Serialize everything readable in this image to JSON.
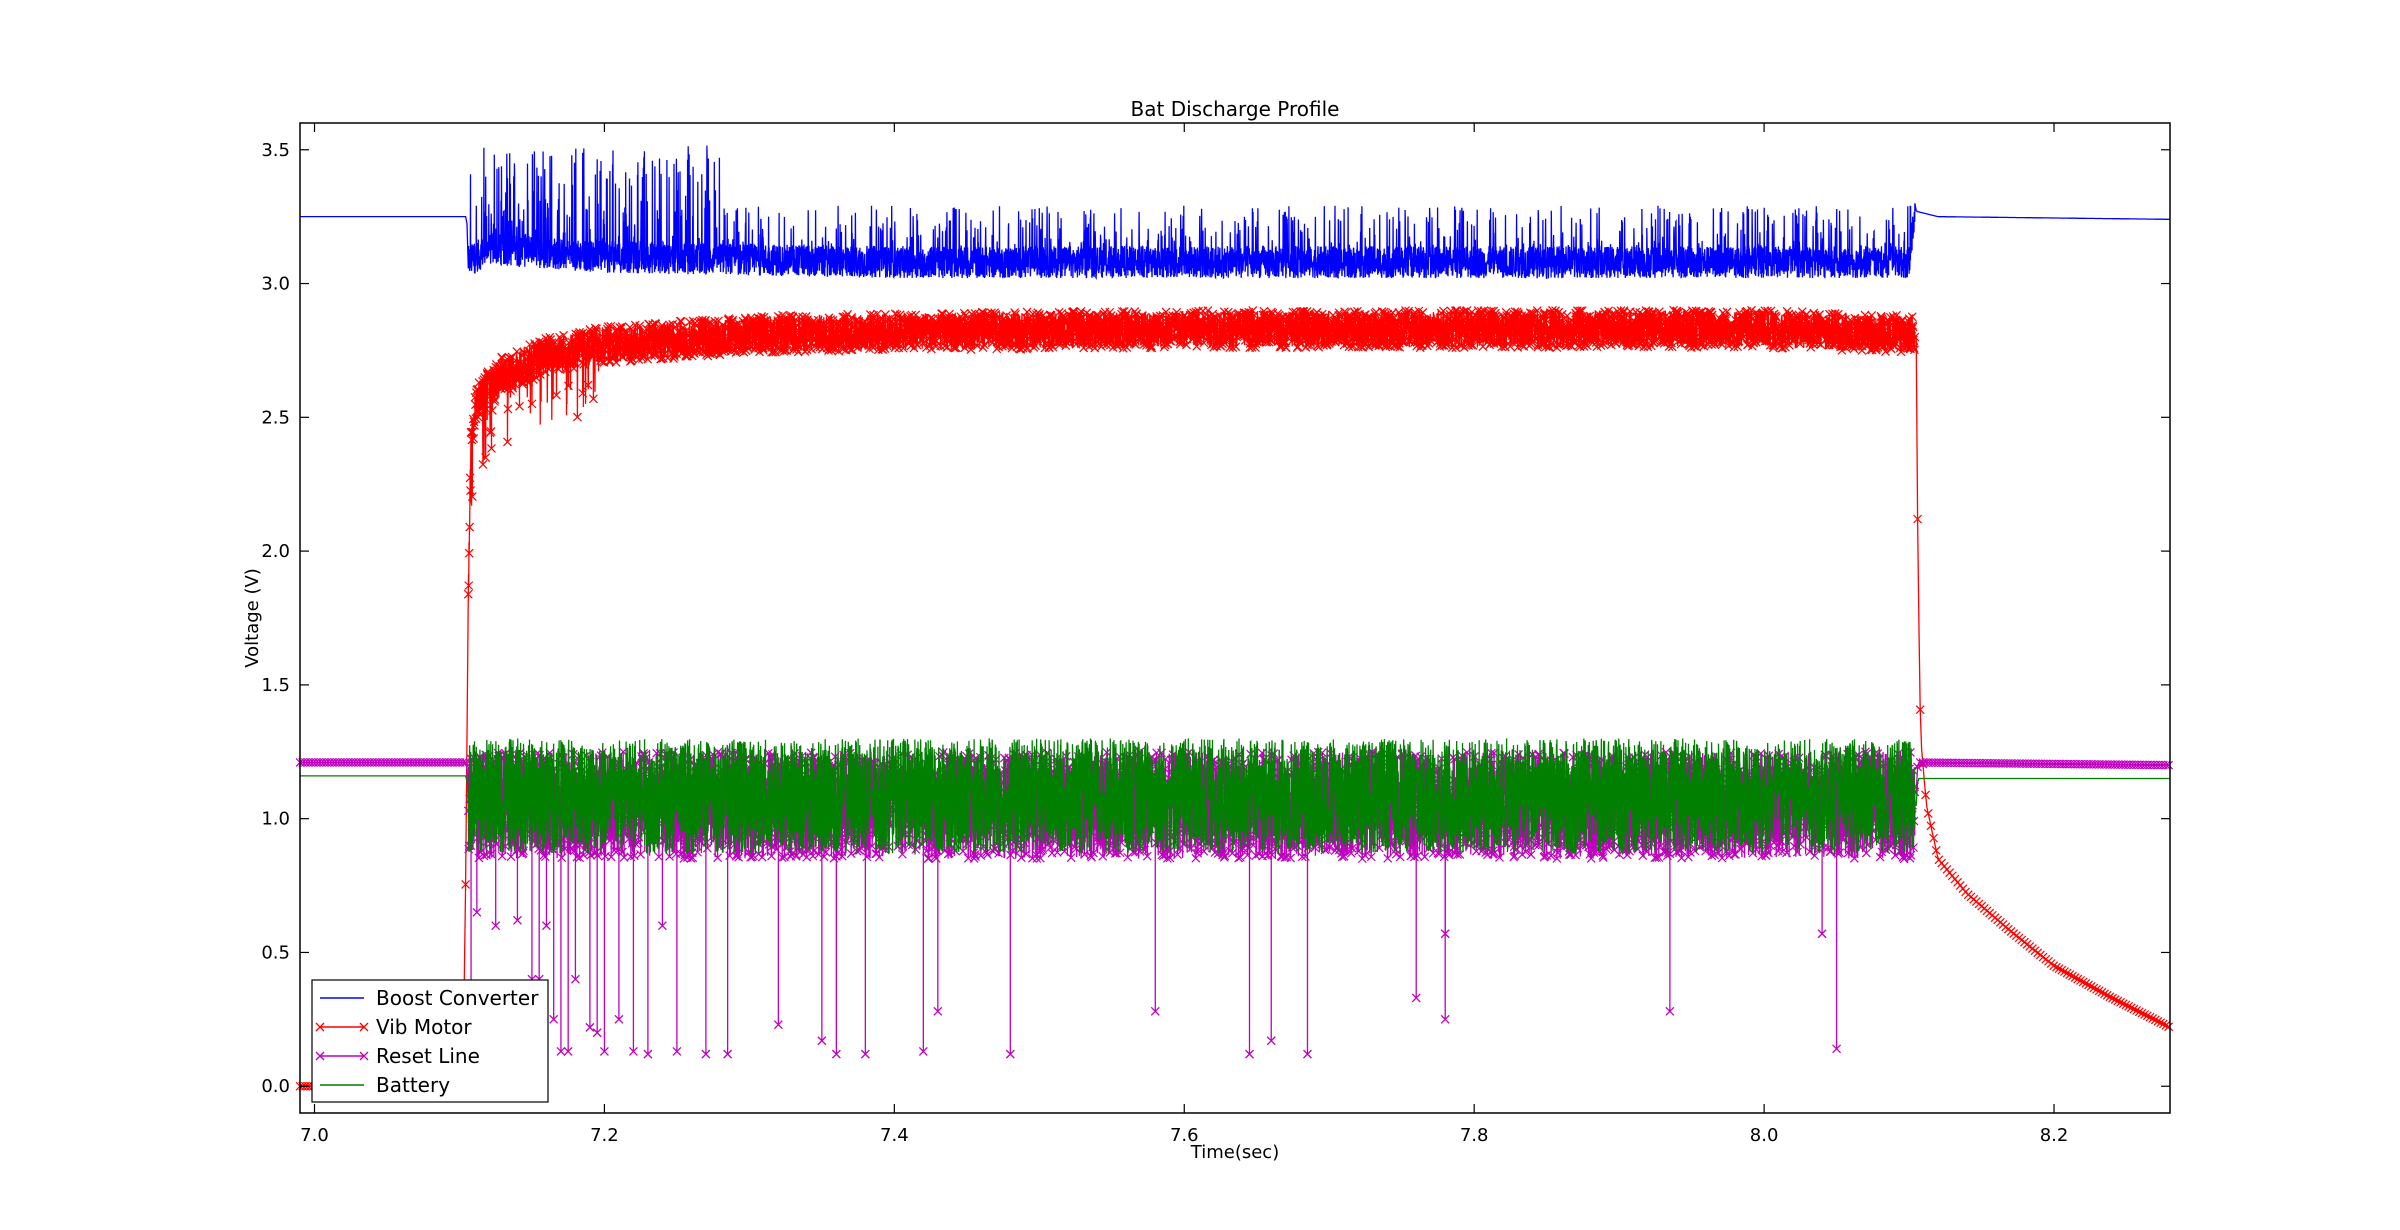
{
  "chart_data": {
    "type": "line",
    "title": "Bat Discharge Profile",
    "xlabel": "Time(sec)",
    "ylabel": "Voltage (V)",
    "xlim": [
      6.99,
      8.28
    ],
    "ylim": [
      -0.1,
      3.6
    ],
    "xticks": [
      7.0,
      7.2,
      7.4,
      7.6,
      7.8,
      8.0,
      8.2
    ],
    "xtick_labels": [
      "7.0",
      "7.2",
      "7.4",
      "7.6",
      "7.8",
      "8.0",
      "8.2"
    ],
    "yticks": [
      0.0,
      0.5,
      1.0,
      1.5,
      2.0,
      2.5,
      3.0,
      3.5
    ],
    "ytick_labels": [
      "0.0",
      "0.5",
      "1.0",
      "1.5",
      "2.0",
      "2.5",
      "3.0",
      "3.5"
    ],
    "grid": false,
    "legend_position": "bottom-left",
    "series": [
      {
        "name": "Boost Converter",
        "color": "#0000ff",
        "marker": "none",
        "x": [
          6.99,
          7.105,
          7.106,
          7.12,
          7.2,
          7.4,
          7.6,
          7.8,
          8.0,
          8.1,
          8.104,
          8.105,
          8.12,
          8.28
        ],
        "y": [
          3.25,
          3.25,
          3.1,
          3.15,
          3.12,
          3.1,
          3.1,
          3.1,
          3.1,
          3.1,
          3.3,
          3.27,
          3.25,
          3.24
        ],
        "spike_range": [
          3.0,
          3.52
        ]
      },
      {
        "name": "Vib Motor",
        "color": "#ff0000",
        "marker": "x",
        "x": [
          6.99,
          7.102,
          7.104,
          7.106,
          7.108,
          7.112,
          7.13,
          7.16,
          7.2,
          7.3,
          7.4,
          7.6,
          7.8,
          8.0,
          8.105,
          8.106,
          8.108,
          8.112,
          8.12,
          8.14,
          8.17,
          8.2,
          8.24,
          8.28
        ],
        "y": [
          0.0,
          0.0,
          0.6,
          1.8,
          2.4,
          2.55,
          2.65,
          2.72,
          2.76,
          2.8,
          2.81,
          2.82,
          2.82,
          2.82,
          2.8,
          2.0,
          1.3,
          1.05,
          0.85,
          0.72,
          0.58,
          0.45,
          0.33,
          0.22
        ],
        "spike_range": [
          2.7,
          2.95
        ]
      },
      {
        "name": "Reset Line",
        "color": "#bf00bf",
        "marker": "x",
        "x": [
          6.99,
          7.105,
          7.106,
          8.105,
          8.106,
          8.28
        ],
        "y": [
          1.21,
          1.21,
          1.1,
          1.1,
          1.21,
          1.2
        ],
        "spike_range": [
          0.85,
          1.25
        ],
        "dips_x": [
          7.108,
          7.112,
          7.125,
          7.14,
          7.15,
          7.155,
          7.16,
          7.165,
          7.17,
          7.175,
          7.18,
          7.19,
          7.195,
          7.2,
          7.21,
          7.22,
          7.23,
          7.24,
          7.25,
          7.27,
          7.285,
          7.32,
          7.35,
          7.36,
          7.38,
          7.42,
          7.43,
          7.48,
          7.58,
          7.645,
          7.66,
          7.685,
          7.76,
          7.78,
          7.78,
          7.935,
          8.04,
          8.05
        ],
        "dips_y": [
          0.12,
          0.65,
          0.6,
          0.62,
          0.4,
          0.4,
          0.6,
          0.25,
          0.13,
          0.13,
          0.4,
          0.22,
          0.2,
          0.13,
          0.25,
          0.13,
          0.12,
          0.6,
          0.13,
          0.12,
          0.12,
          0.23,
          0.17,
          0.12,
          0.12,
          0.13,
          0.28,
          0.12,
          0.28,
          0.12,
          0.17,
          0.12,
          0.33,
          0.57,
          0.25,
          0.28,
          0.57,
          0.14
        ]
      },
      {
        "name": "Battery",
        "color": "#007f00",
        "marker": "none",
        "x": [
          6.99,
          7.105,
          7.106,
          8.105,
          8.106,
          8.28
        ],
        "y": [
          1.16,
          1.16,
          1.05,
          1.05,
          1.15,
          1.15
        ],
        "spike_range": [
          0.87,
          1.3
        ]
      }
    ]
  }
}
